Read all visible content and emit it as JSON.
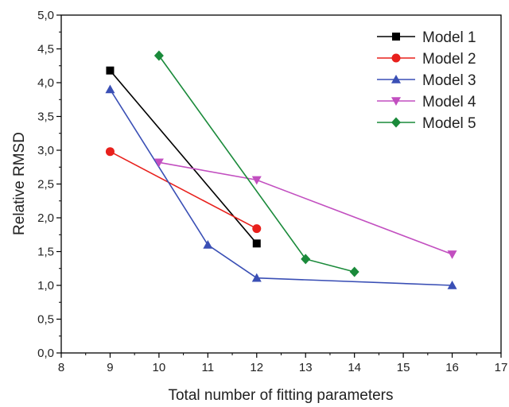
{
  "chart_data": {
    "type": "line",
    "xlabel": "Total number of fitting parameters",
    "ylabel": "Relative RMSD",
    "xlim": [
      8,
      17
    ],
    "ylim": [
      0,
      5
    ],
    "x_ticks": [
      "8",
      "9",
      "10",
      "11",
      "12",
      "13",
      "14",
      "15",
      "16",
      "17"
    ],
    "y_ticks": [
      "0,0",
      "0,5",
      "1,0",
      "1,5",
      "2,0",
      "2,5",
      "3,0",
      "3,5",
      "4,0",
      "4,5",
      "5,0"
    ],
    "grid": false,
    "legend_position": "top-right",
    "series": [
      {
        "name": "Model 1",
        "color": "#000000",
        "marker": "square",
        "x": [
          9,
          12
        ],
        "y": [
          4.18,
          1.62
        ]
      },
      {
        "name": "Model 2",
        "color": "#e8201c",
        "marker": "circle",
        "x": [
          9,
          12
        ],
        "y": [
          2.98,
          1.84
        ]
      },
      {
        "name": "Model 3",
        "color": "#3a4fb5",
        "marker": "triangle-up",
        "x": [
          9,
          11,
          12,
          16
        ],
        "y": [
          3.9,
          1.6,
          1.11,
          1.0
        ]
      },
      {
        "name": "Model 4",
        "color": "#c24fc0",
        "marker": "triangle-down",
        "x": [
          10,
          12,
          16
        ],
        "y": [
          2.82,
          2.56,
          1.46
        ]
      },
      {
        "name": "Model 5",
        "color": "#1a8a3a",
        "marker": "diamond",
        "x": [
          10,
          13,
          14
        ],
        "y": [
          4.4,
          1.39,
          1.2
        ]
      }
    ]
  }
}
